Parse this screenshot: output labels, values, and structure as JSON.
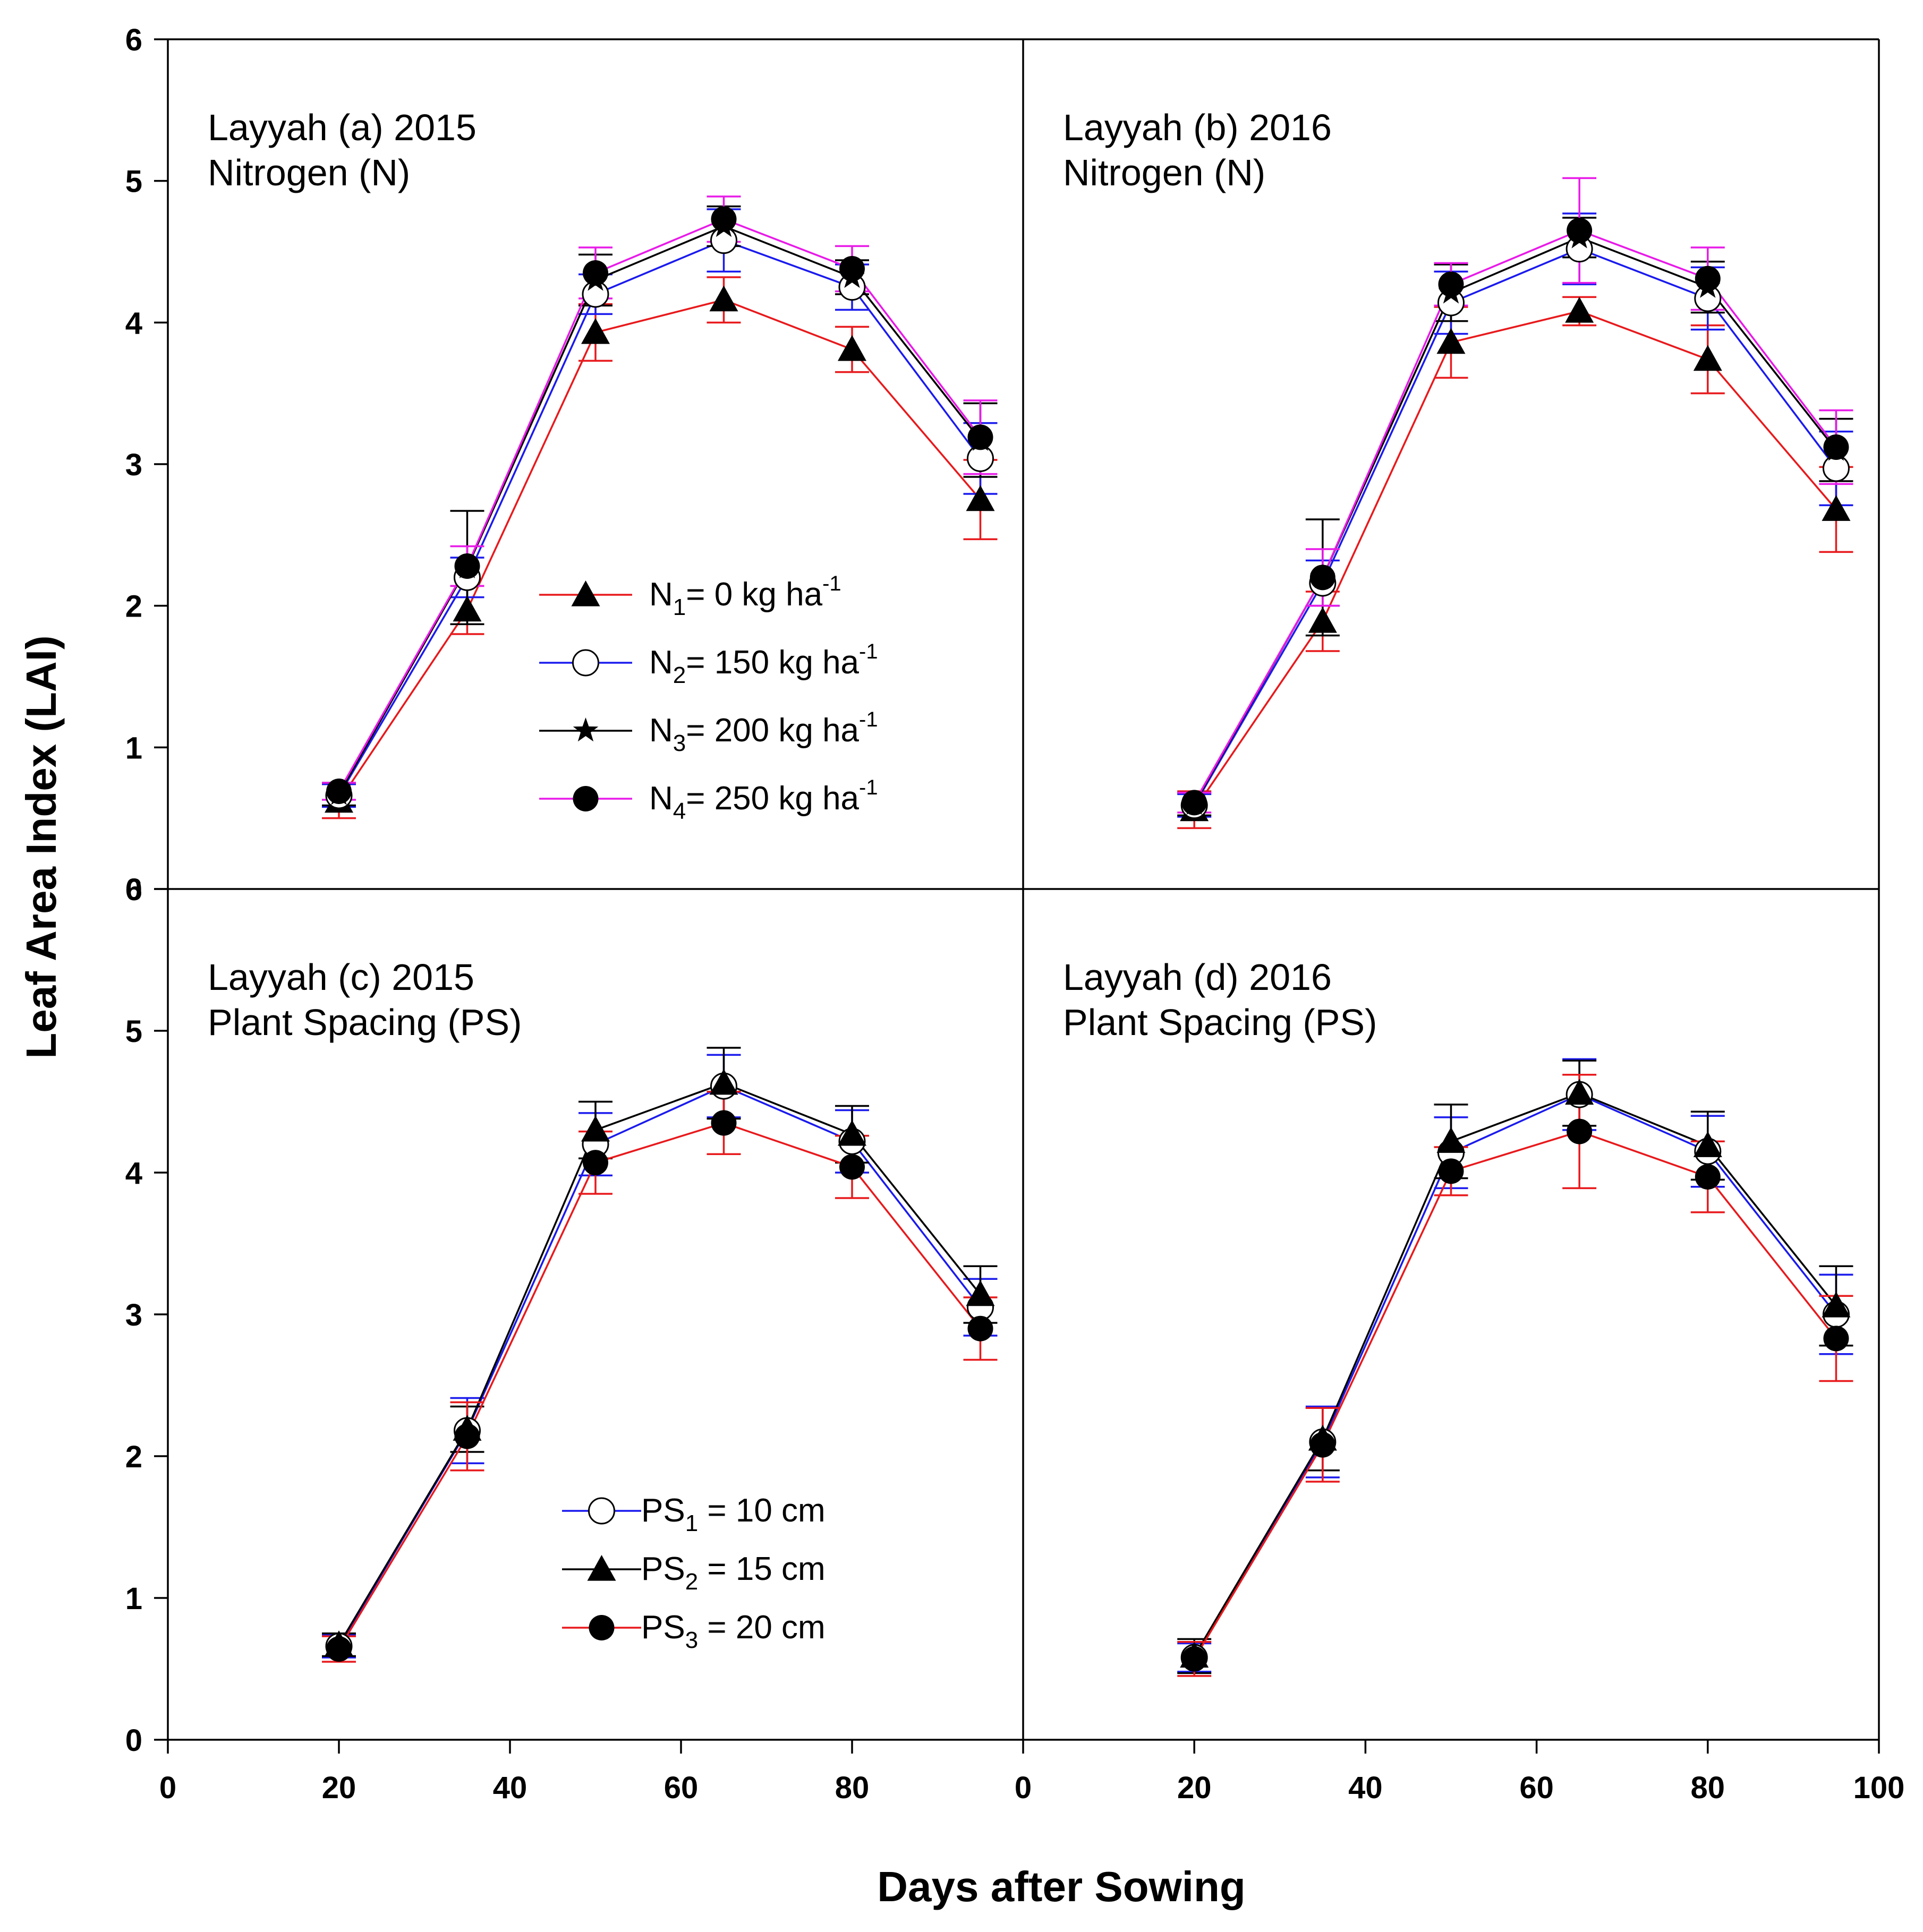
{
  "chart_data": [
    {
      "id": "a",
      "type": "line",
      "label_line1": "Layyah (a) 2015",
      "label_line2": "Nitrogen (N)",
      "x": [
        20,
        35,
        50,
        65,
        80,
        95
      ],
      "xlim": [
        0,
        100
      ],
      "ylim": [
        0,
        6
      ],
      "series": [
        {
          "name": "N1",
          "color": "#e8191c",
          "marker": "triangle",
          "values": [
            0.62,
            1.97,
            3.93,
            4.16,
            3.81,
            2.75
          ],
          "err": [
            0.12,
            0.17,
            0.2,
            0.16,
            0.16,
            0.28
          ]
        },
        {
          "name": "N2",
          "color": "#1a1aee",
          "marker": "open-circle",
          "values": [
            0.66,
            2.2,
            4.2,
            4.58,
            4.25,
            3.04
          ],
          "err": [
            0.08,
            0.14,
            0.14,
            0.22,
            0.16,
            0.25
          ]
        },
        {
          "name": "N3",
          "color": "#000000",
          "marker": "star",
          "values": [
            0.67,
            2.27,
            4.3,
            4.68,
            4.32,
            3.17
          ],
          "err": [
            0.08,
            0.4,
            0.18,
            0.14,
            0.12,
            0.26
          ]
        },
        {
          "name": "N4",
          "color": "#e81ae8",
          "marker": "filled-circle",
          "values": [
            0.69,
            2.28,
            4.35,
            4.73,
            4.38,
            3.19
          ],
          "err": [
            0.06,
            0.14,
            0.18,
            0.16,
            0.16,
            0.26
          ]
        }
      ],
      "legend": [
        {
          "series": "N1",
          "prefix": "N",
          "sub": "1",
          "text": "= 0 kg ha",
          "sup": "-1"
        },
        {
          "series": "N2",
          "prefix": "N",
          "sub": "2",
          "text": "= 150 kg ha",
          "sup": "-1"
        },
        {
          "series": "N3",
          "prefix": "N",
          "sub": "3",
          "text": "= 200 kg ha",
          "sup": "-1"
        },
        {
          "series": "N4",
          "prefix": "N",
          "sub": "4",
          "text": "= 250 kg ha",
          "sup": "-1"
        }
      ]
    },
    {
      "id": "b",
      "type": "line",
      "label_line1": "Layyah (b) 2016",
      "label_line2": "Nitrogen (N)",
      "x": [
        20,
        35,
        50,
        65,
        80,
        95
      ],
      "xlim": [
        0,
        100
      ],
      "ylim": [
        0,
        6
      ],
      "series": [
        {
          "name": "N1",
          "color": "#e8191c",
          "marker": "triangle",
          "values": [
            0.56,
            1.89,
            3.86,
            4.08,
            3.74,
            2.68
          ],
          "err": [
            0.13,
            0.21,
            0.25,
            0.1,
            0.24,
            0.3
          ]
        },
        {
          "name": "N2",
          "color": "#1a1aee",
          "marker": "open-circle",
          "values": [
            0.59,
            2.16,
            4.14,
            4.52,
            4.17,
            2.97
          ],
          "err": [
            0.08,
            0.16,
            0.22,
            0.25,
            0.22,
            0.26
          ]
        },
        {
          "name": "N3",
          "color": "#000000",
          "marker": "star",
          "values": [
            0.6,
            2.2,
            4.21,
            4.6,
            4.25,
            3.1
          ],
          "err": [
            0.08,
            0.41,
            0.2,
            0.14,
            0.18,
            0.22
          ]
        },
        {
          "name": "N4",
          "color": "#e81ae8",
          "marker": "filled-circle",
          "values": [
            0.61,
            2.2,
            4.27,
            4.65,
            4.31,
            3.12
          ],
          "err": [
            0.07,
            0.2,
            0.15,
            0.37,
            0.22,
            0.26
          ]
        }
      ],
      "legend": []
    },
    {
      "id": "c",
      "type": "line",
      "label_line1": "Layyah (c) 2015",
      "label_line2": "Plant Spacing (PS)",
      "x": [
        20,
        35,
        50,
        65,
        80,
        95
      ],
      "xlim": [
        0,
        100
      ],
      "ylim": [
        0,
        6
      ],
      "series": [
        {
          "name": "PS1",
          "color": "#1a1aee",
          "marker": "open-circle",
          "values": [
            0.66,
            2.18,
            4.2,
            4.61,
            4.22,
            3.05
          ],
          "err": [
            0.08,
            0.23,
            0.22,
            0.22,
            0.22,
            0.2
          ]
        },
        {
          "name": "PS2",
          "color": "#000000",
          "marker": "triangle",
          "values": [
            0.67,
            2.19,
            4.3,
            4.63,
            4.27,
            3.14
          ],
          "err": [
            0.08,
            0.16,
            0.2,
            0.25,
            0.2,
            0.2
          ]
        },
        {
          "name": "PS3",
          "color": "#e8191c",
          "marker": "filled-circle",
          "values": [
            0.64,
            2.14,
            4.07,
            4.35,
            4.04,
            2.9
          ],
          "err": [
            0.09,
            0.24,
            0.22,
            0.22,
            0.22,
            0.22
          ]
        }
      ],
      "legend": [
        {
          "series": "PS1",
          "prefix": "PS",
          "sub": "1",
          "text": " = 10 cm",
          "sup": ""
        },
        {
          "series": "PS2",
          "prefix": "PS",
          "sub": "2",
          "text": "  =  15 cm",
          "sup": ""
        },
        {
          "series": "PS3",
          "prefix": "PS",
          "sub": "3",
          "text": " = 20 cm",
          "sup": ""
        }
      ]
    },
    {
      "id": "d",
      "type": "line",
      "label_line1": "Layyah (d) 2016",
      "label_line2": "Plant Spacing (PS)",
      "x": [
        20,
        35,
        50,
        65,
        80,
        95
      ],
      "xlim": [
        0,
        100
      ],
      "ylim": [
        0,
        6
      ],
      "series": [
        {
          "name": "PS1",
          "color": "#1a1aee",
          "marker": "open-circle",
          "values": [
            0.58,
            2.1,
            4.14,
            4.55,
            4.15,
            3.0
          ],
          "err": [
            0.1,
            0.25,
            0.25,
            0.25,
            0.25,
            0.28
          ]
        },
        {
          "name": "PS2",
          "color": "#000000",
          "marker": "triangle",
          "values": [
            0.59,
            2.12,
            4.22,
            4.56,
            4.19,
            3.06
          ],
          "err": [
            0.12,
            0.22,
            0.26,
            0.23,
            0.24,
            0.28
          ]
        },
        {
          "name": "PS3",
          "color": "#e8191c",
          "marker": "filled-circle",
          "values": [
            0.57,
            2.08,
            4.01,
            4.29,
            3.97,
            2.83
          ],
          "err": [
            0.12,
            0.26,
            0.17,
            0.4,
            0.25,
            0.3
          ]
        }
      ],
      "legend": []
    }
  ],
  "axes": {
    "xlabel": "Days after Sowing",
    "ylabel": "Leaf Area Index (LAI)",
    "x_tick_labels": [
      "0",
      "20",
      "40",
      "60",
      "80",
      "0",
      "20",
      "40",
      "60",
      "80",
      "100"
    ],
    "y_tick_labels_top": [
      "6",
      "5",
      "4",
      "3",
      "2",
      "1",
      "0"
    ],
    "y_tick_labels_bottom": [
      "6",
      "5",
      "4",
      "3",
      "2",
      "1",
      "0"
    ]
  }
}
